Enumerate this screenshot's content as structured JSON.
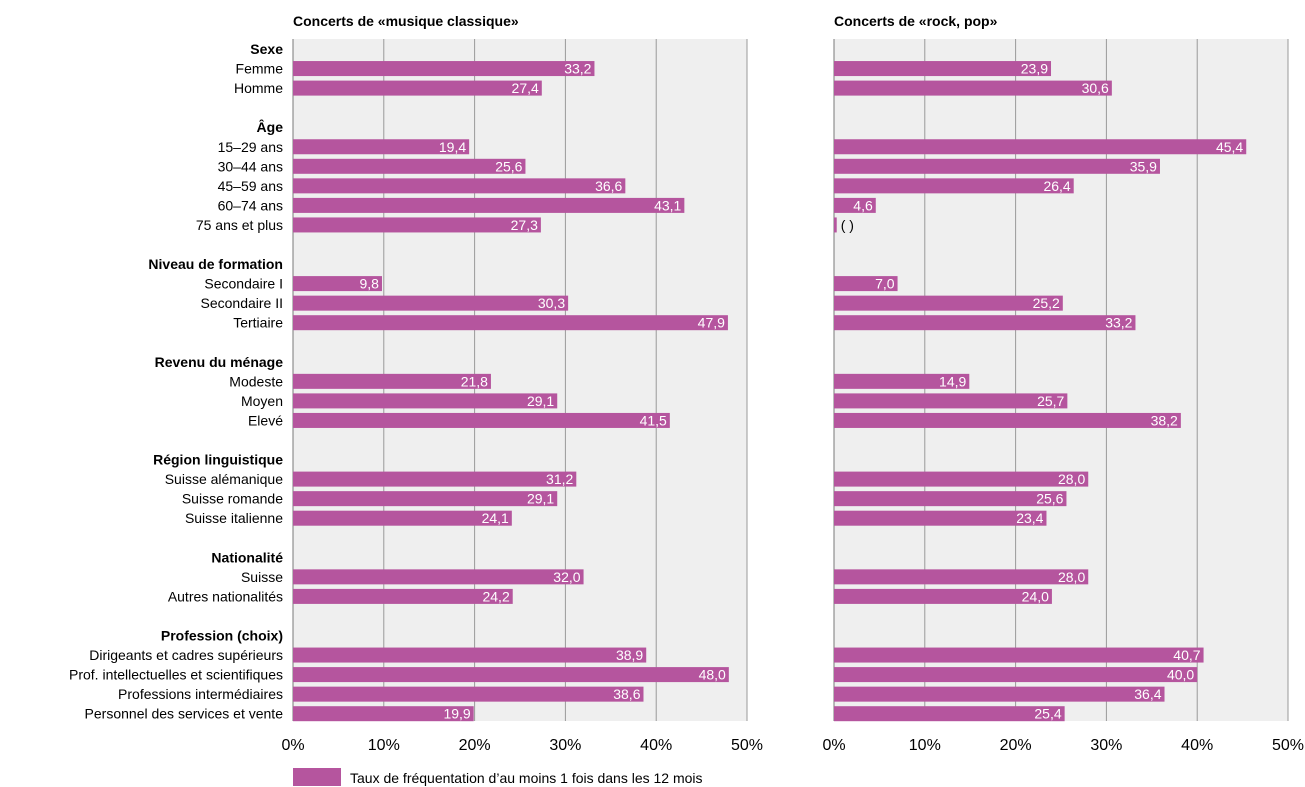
{
  "chart_data": {
    "type": "bar",
    "orientation": "horizontal",
    "xlim": [
      0,
      50
    ],
    "x_ticks": [
      "0%",
      "10%",
      "20%",
      "30%",
      "40%",
      "50%"
    ],
    "grid": true,
    "legend": {
      "position": "bottom",
      "label": "Taux de fréquentation d’au moins 1 fois dans les 12 mois",
      "color": "#b5559e"
    },
    "colors": {
      "bar": "#b5559e",
      "panel_bg": "#efefef",
      "grid": "#999999"
    },
    "groups": [
      {
        "label": "Sexe",
        "items": [
          "Femme",
          "Homme"
        ]
      },
      {
        "label": "Âge",
        "items": [
          "15–29 ans",
          "30–44 ans",
          "45–59 ans",
          "60–74 ans",
          "75 ans et plus"
        ]
      },
      {
        "label": "Niveau de formation",
        "items": [
          "Secondaire I",
          "Secondaire II",
          "Tertiaire"
        ]
      },
      {
        "label": "Revenu du ménage",
        "items": [
          "Modeste",
          "Moyen",
          "Elevé"
        ]
      },
      {
        "label": "Région linguistique",
        "items": [
          "Suisse alémanique",
          "Suisse romande",
          "Suisse italienne"
        ]
      },
      {
        "label": "Nationalité",
        "items": [
          "Suisse",
          "Autres nationalités"
        ]
      },
      {
        "label": "Profession (choix)",
        "items": [
          "Dirigeants et cadres supérieurs",
          "Prof. intellectuelles et scientifiques",
          "Professions intermédiaires",
          "Personnel des services et vente"
        ]
      }
    ],
    "panels": [
      {
        "title": "Concerts de «musique classique»",
        "values": [
          33.2,
          27.4,
          19.4,
          25.6,
          36.6,
          43.1,
          27.3,
          9.8,
          30.3,
          47.9,
          21.8,
          29.1,
          41.5,
          31.2,
          29.1,
          24.1,
          32.0,
          24.2,
          38.9,
          48.0,
          38.6,
          19.9
        ],
        "labels": [
          "33,2",
          "27,4",
          "19,4",
          "25,6",
          "36,6",
          "43,1",
          "27,3",
          "9,8",
          "30,3",
          "47,9",
          "21,8",
          "29,1",
          "41,5",
          "31,2",
          "29,1",
          "24,1",
          "32,0",
          "24,2",
          "38,9",
          "48,0",
          "38,6",
          "19,9"
        ]
      },
      {
        "title": "Concerts de «rock, pop»",
        "values": [
          23.9,
          30.6,
          45.4,
          35.9,
          26.4,
          4.6,
          0.3,
          7.0,
          25.2,
          33.2,
          14.9,
          25.7,
          38.2,
          28.0,
          25.6,
          23.4,
          28.0,
          24.0,
          40.7,
          40.0,
          36.4,
          25.4
        ],
        "labels": [
          "23,9",
          "30,6",
          "45,4",
          "35,9",
          "26,4",
          "4,6",
          "( )",
          "7,0",
          "25,2",
          "33,2",
          "14,9",
          "25,7",
          "38,2",
          "28,0",
          "25,6",
          "23,4",
          "28,0",
          "24,0",
          "40,7",
          "40,0",
          "36,4",
          "25,4"
        ]
      }
    ]
  }
}
